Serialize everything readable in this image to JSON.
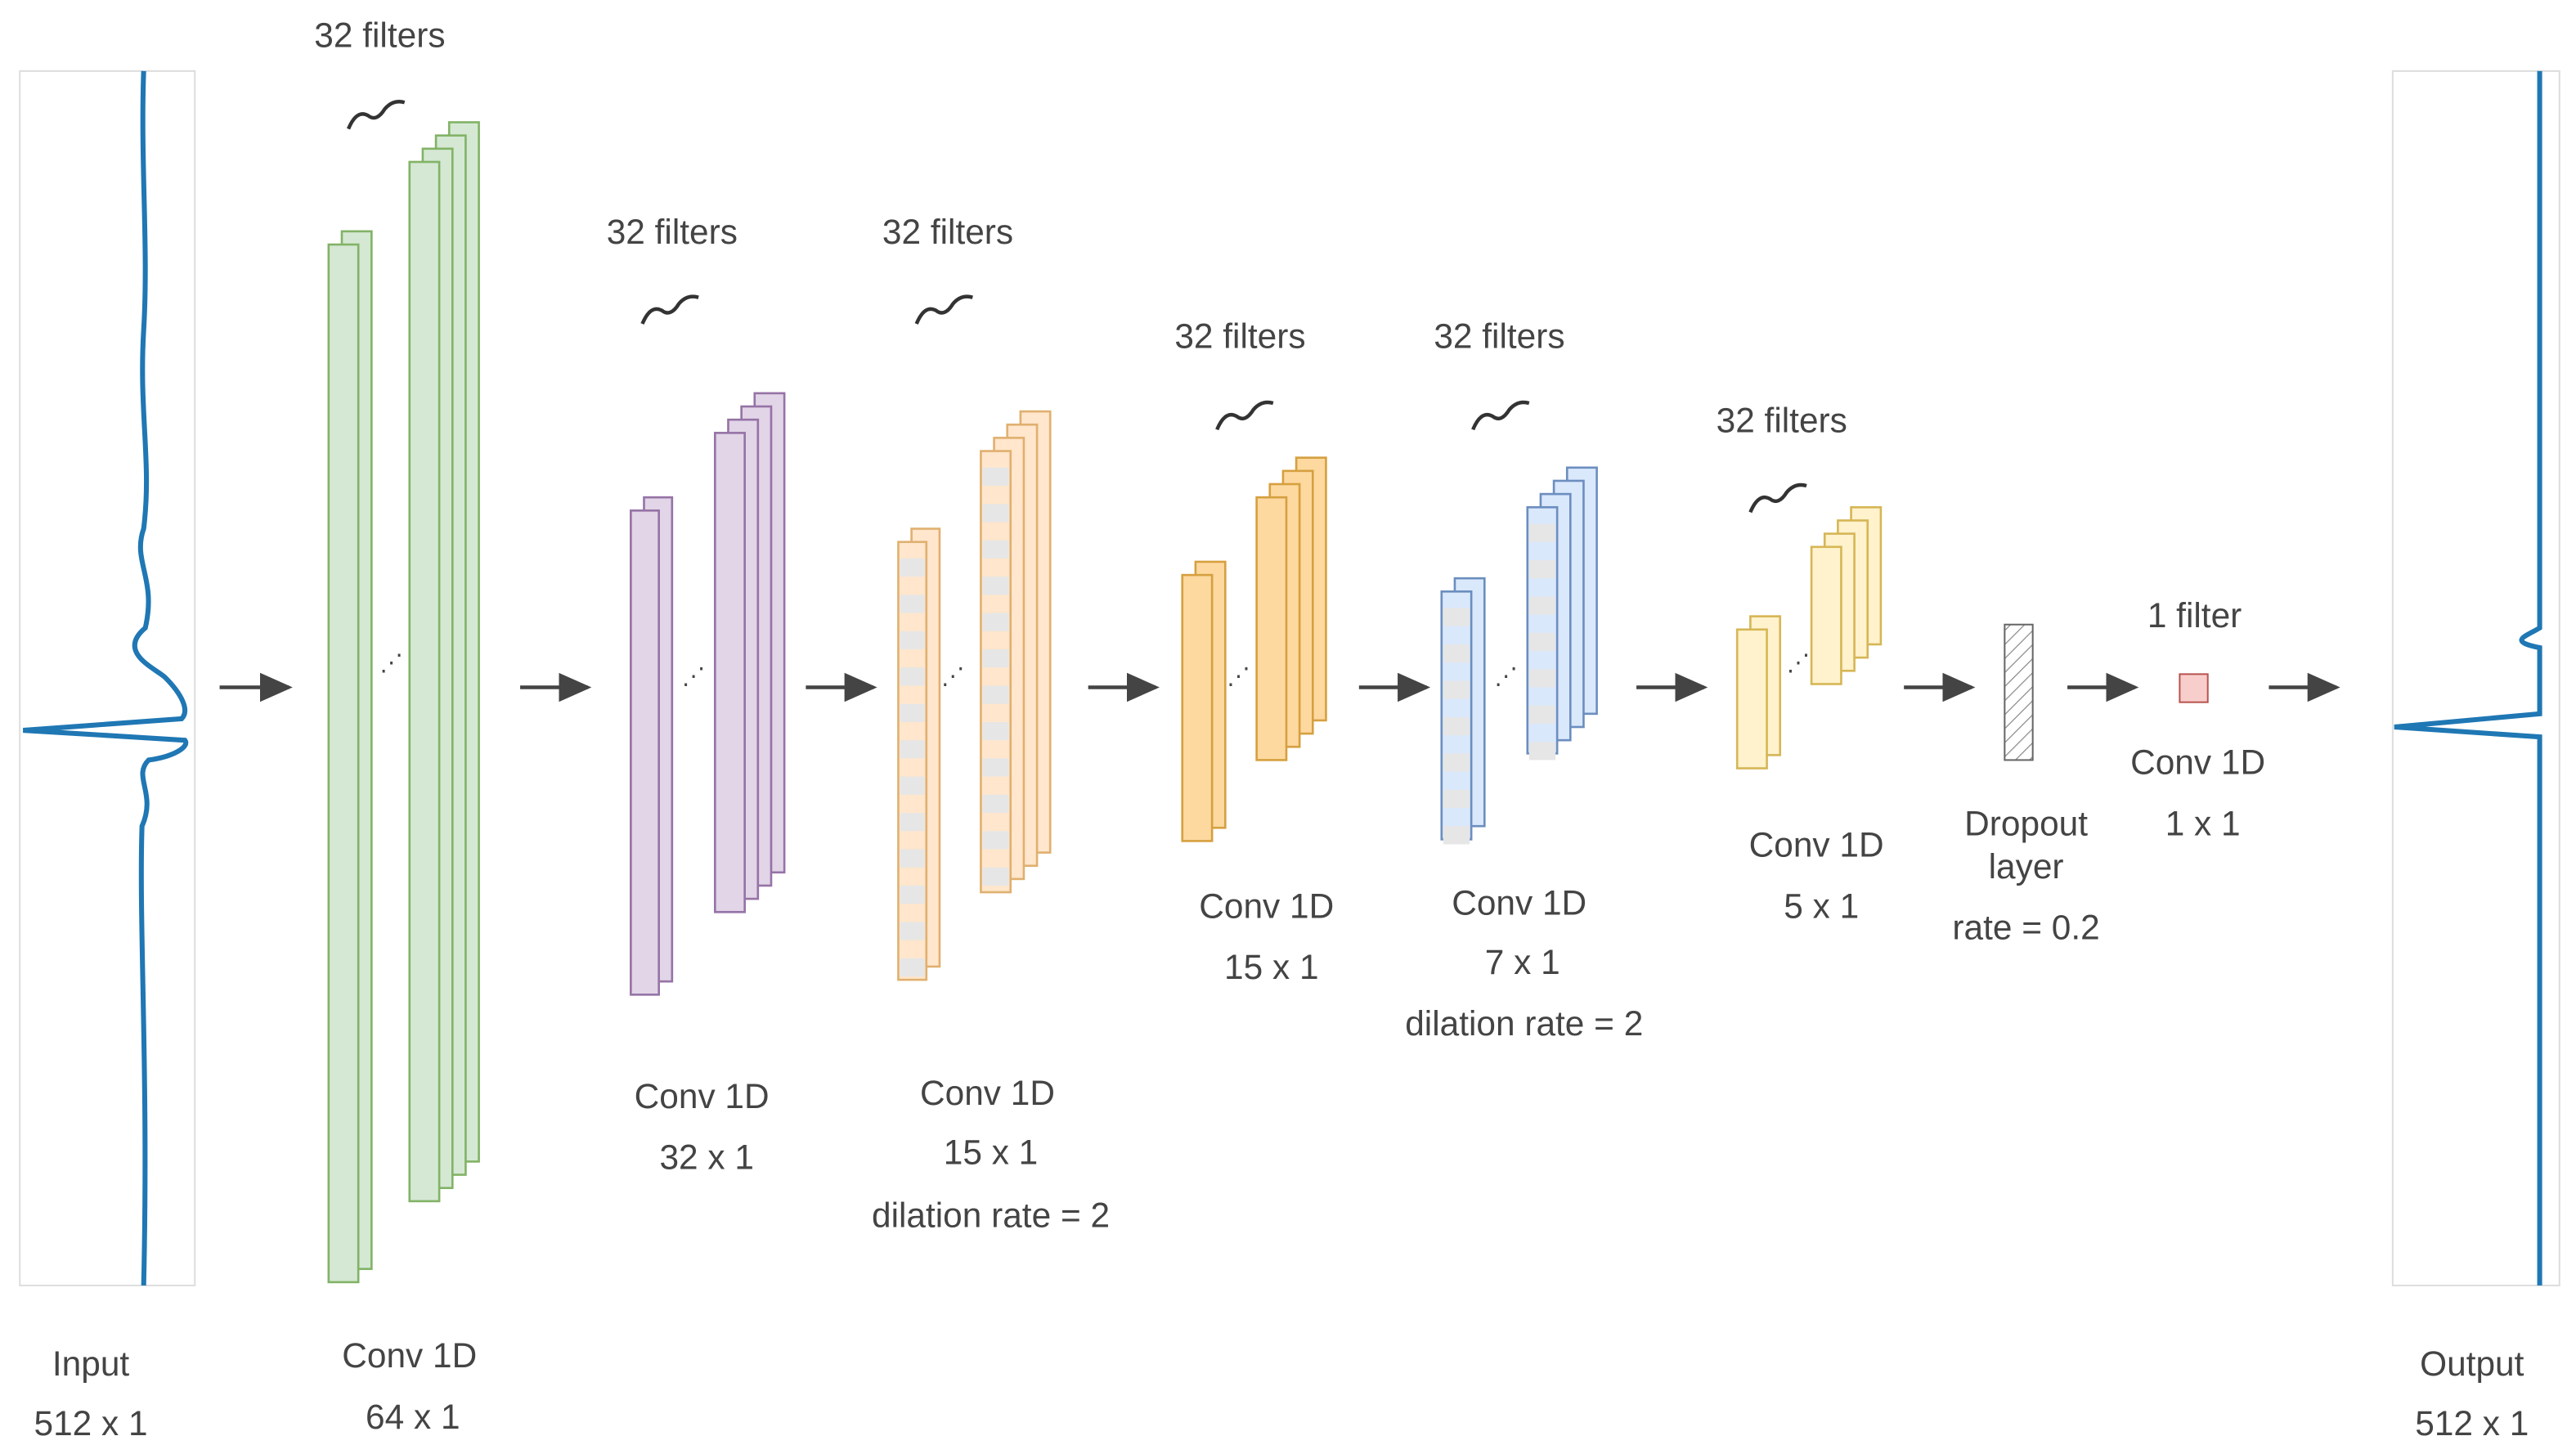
{
  "input": {
    "label": "Input",
    "size": "512 x 1"
  },
  "layers": [
    {
      "filters": "32 filters",
      "name": "Conv 1D",
      "size": "64 x 1"
    },
    {
      "filters": "32 filters",
      "name": "Conv 1D",
      "size": "32 x 1"
    },
    {
      "filters": "32 filters",
      "name": "Conv 1D",
      "size": "15 x 1",
      "note": "dilation rate = 2"
    },
    {
      "filters": "32 filters",
      "name": "Conv 1D",
      "size": "15 x 1"
    },
    {
      "filters": "32 filters",
      "name": "Conv 1D",
      "size": "7 x 1",
      "note": "dilation rate = 2"
    },
    {
      "filters": "32 filters",
      "name": "Conv 1D",
      "size": "5 x 1"
    },
    {
      "name": "Dropout",
      "name2": "layer",
      "note": "rate = 0.2"
    },
    {
      "filters": "1 filter",
      "name": "Conv 1D",
      "size": "1 x 1"
    }
  ],
  "output": {
    "label": "Output",
    "size": "512 x 1"
  }
}
